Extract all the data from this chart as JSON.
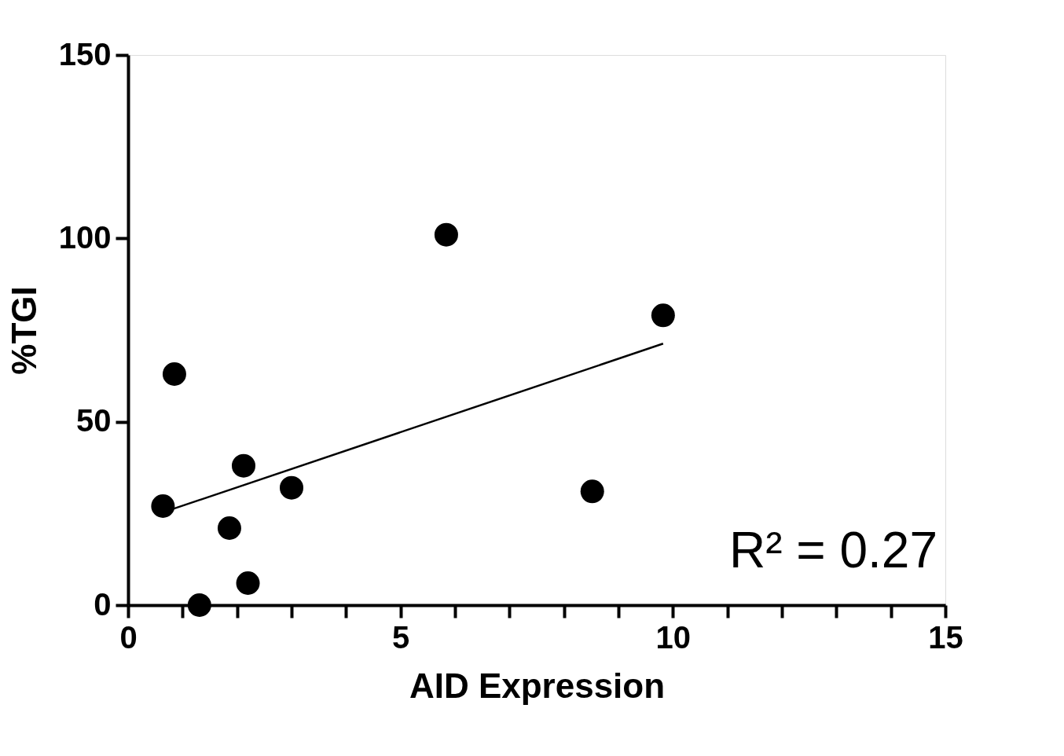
{
  "chart_data": {
    "type": "scatter",
    "xlabel": "AID Expression",
    "ylabel": "%TGI",
    "xlim": [
      0,
      15
    ],
    "ylim": [
      0,
      150
    ],
    "xticks": [
      0,
      {
        "value": 1,
        "label": null
      },
      {
        "value": 2,
        "label": null
      },
      {
        "value": 3,
        "label": null
      },
      {
        "value": 4,
        "label": null
      },
      5,
      {
        "value": 6,
        "label": null
      },
      {
        "value": 7,
        "label": null
      },
      {
        "value": 8,
        "label": null
      },
      {
        "value": 9,
        "label": null
      },
      10,
      {
        "value": 11,
        "label": null
      },
      {
        "value": 12,
        "label": null
      },
      {
        "value": 13,
        "label": null
      },
      {
        "value": 14,
        "label": null
      },
      15
    ],
    "yticks": [
      0,
      50,
      100,
      150
    ],
    "grid": false,
    "marker": "circle",
    "series": [
      {
        "color": "#000000",
        "x": [
          0.64,
          0.85,
          1.31,
          1.86,
          2.12,
          2.2,
          3.0,
          5.84,
          8.52,
          9.82
        ],
        "values": [
          27,
          63,
          0,
          21,
          38,
          6,
          32,
          101,
          31,
          79
        ]
      },
      {
        "type": "line",
        "color": "#000000",
        "line_style": "solid",
        "marker": "none",
        "x": [
          0.64,
          9.82
        ],
        "values": [
          25.3,
          71.3
        ]
      }
    ],
    "annotations": [
      "R² = 0.27"
    ]
  }
}
